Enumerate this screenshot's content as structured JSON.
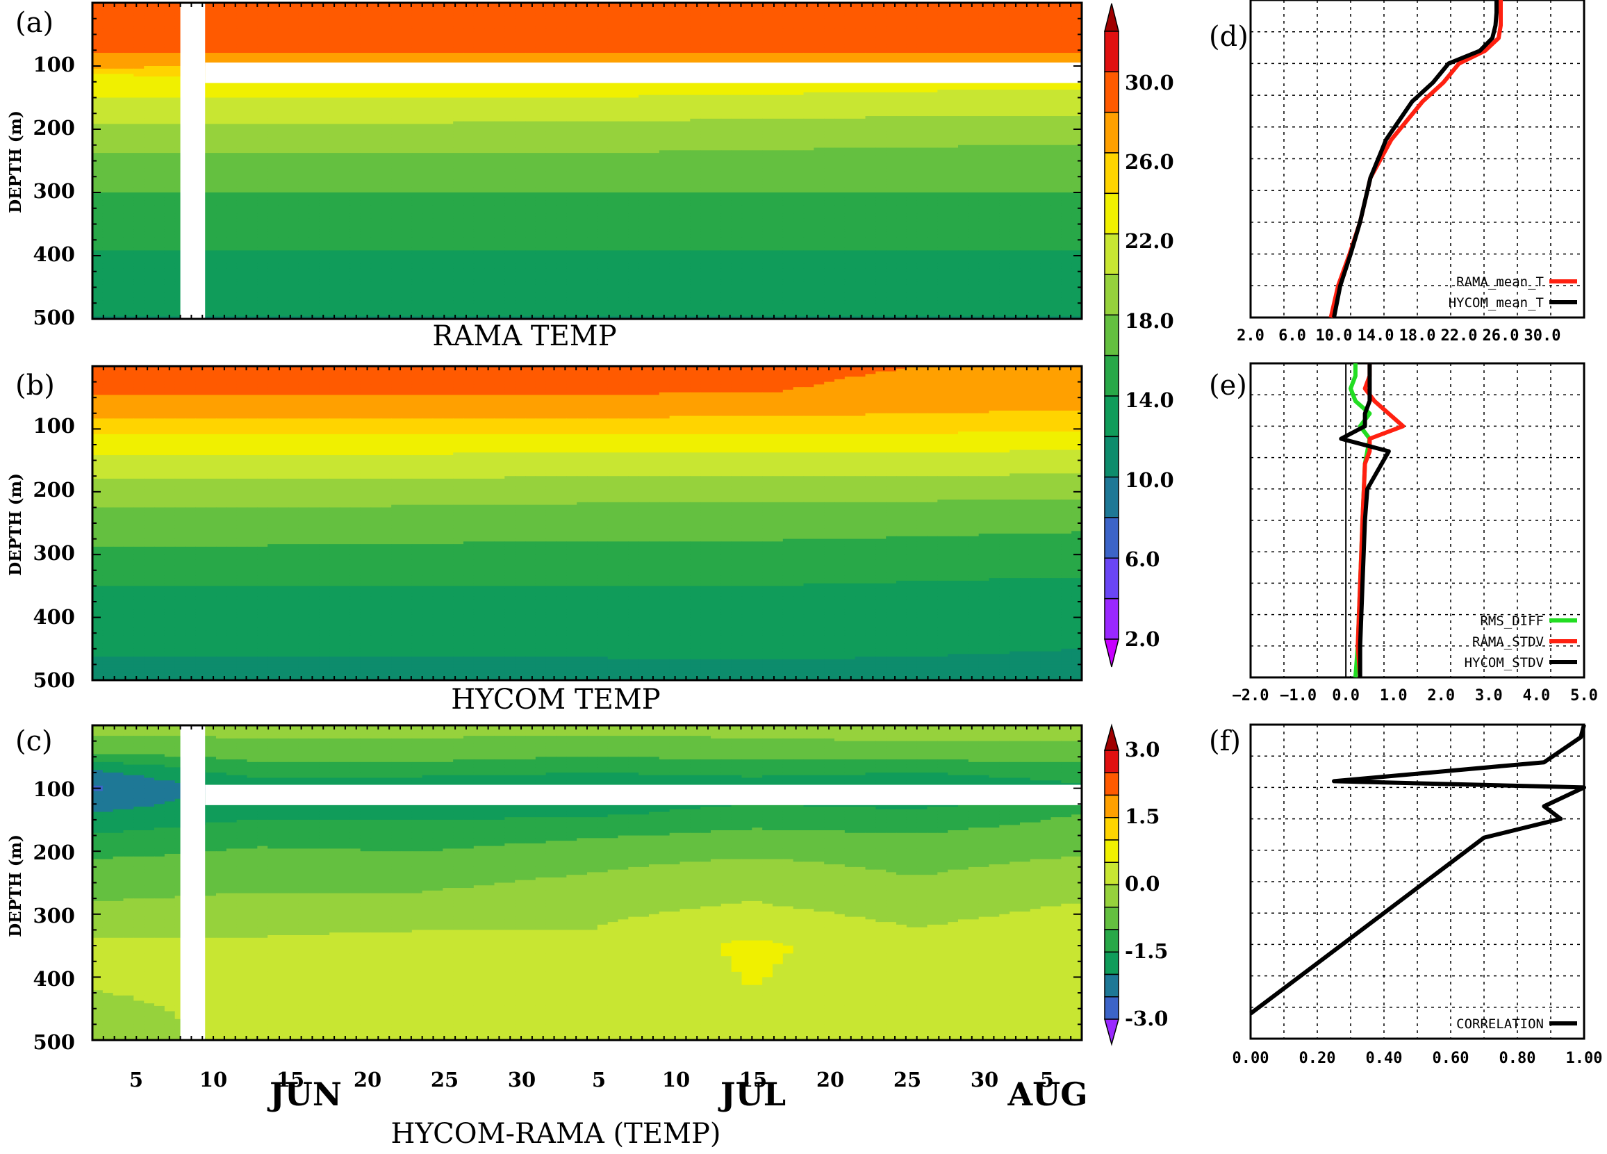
{
  "colors": {
    "levels_temp": [
      "#a00000",
      "#e01010",
      "#ff5a00",
      "#ffa000",
      "#ffd400",
      "#f0f000",
      "#c8e632",
      "#96d23c",
      "#64c040",
      "#28a848",
      "#109c5a",
      "#0d8c6c",
      "#1e7896",
      "#3c64c8",
      "#6a46f5",
      "#9a28ff",
      "#c800ff"
    ],
    "levels_diff": [
      "#a00000",
      "#e01010",
      "#ff5a00",
      "#ffa000",
      "#ffd400",
      "#f0f000",
      "#c8e632",
      "#96d23c",
      "#64c040",
      "#28a848",
      "#109c5a",
      "#1e7896",
      "#3c64c8",
      "#6a46f5",
      "#9a28ff"
    ],
    "rama_line": "#ff2010",
    "hycom_line": "#000000",
    "rms_line": "#22dd22",
    "gap": "#ffffff"
  },
  "panels": {
    "a": {
      "tag": "(a)",
      "title": "RAMA TEMP",
      "ylabel": "DEPTH (m)",
      "yticks": [
        "100",
        "200",
        "300",
        "400",
        "500"
      ]
    },
    "b": {
      "tag": "(b)",
      "title": "HYCOM TEMP",
      "ylabel": "DEPTH (m)",
      "yticks": [
        "100",
        "200",
        "300",
        "400",
        "500"
      ]
    },
    "c": {
      "tag": "(c)",
      "title": "HYCOM-RAMA (TEMP)",
      "ylabel": "DEPTH (m)",
      "yticks": [
        "100",
        "200",
        "300",
        "400",
        "500"
      ],
      "xticks": [
        "5",
        "10",
        "15",
        "20",
        "25",
        "30",
        "5",
        "10",
        "15",
        "20",
        "25",
        "30",
        "5"
      ],
      "months": [
        "JUN",
        "JUL",
        "AUG"
      ]
    },
    "d": {
      "tag": "(d)"
    },
    "e": {
      "tag": "(e)"
    },
    "f": {
      "tag": "(f)"
    }
  },
  "colorbar_temp": {
    "labels": [
      "30.0",
      "26.0",
      "22.0",
      "18.0",
      "14.0",
      "10.0",
      "6.0",
      "2.0"
    ]
  },
  "colorbar_diff": {
    "labels": [
      "3.0",
      "1.5",
      "0.0",
      "-1.5",
      "-3.0"
    ]
  },
  "chart_data": [
    {
      "type": "heatmap",
      "panel": "(a)",
      "title": "RAMA TEMP",
      "ylabel": "DEPTH (m)",
      "ylim": [
        500,
        0
      ],
      "y": [
        0,
        40,
        80,
        100,
        120,
        140,
        160,
        200,
        250,
        300,
        350,
        400,
        450,
        500
      ],
      "x_days": [
        0,
        15,
        30,
        45,
        60,
        75,
        90
      ],
      "x_start": "2 JUN",
      "values_degC": [
        [
          27.5,
          27.0,
          26.8,
          26.7,
          26.6,
          26.5,
          26.5
        ],
        [
          26.8,
          26.5,
          26.4,
          26.3,
          26.3,
          26.2,
          26.2
        ],
        [
          26.0,
          26.0,
          26.0,
          26.0,
          26.0,
          26.0,
          26.0
        ],
        [
          24.5,
          24.0,
          23.8,
          23.6,
          23.6,
          23.5,
          23.4
        ],
        [
          21.0,
          21.5,
          21.5,
          21.4,
          21.3,
          21.2,
          21.0
        ],
        [
          20.5,
          20.5,
          20.5,
          20.5,
          20.3,
          20.0,
          19.8
        ],
        [
          19.5,
          19.5,
          19.5,
          19.4,
          19.2,
          19.0,
          18.8
        ],
        [
          17.5,
          17.5,
          17.5,
          17.4,
          17.2,
          17.0,
          17.0
        ],
        [
          15.5,
          15.5,
          15.5,
          15.5,
          15.4,
          15.2,
          15.0
        ],
        [
          14.0,
          14.0,
          14.0,
          14.0,
          14.0,
          14.0,
          14.0
        ],
        [
          13.0,
          13.0,
          12.8,
          12.8,
          12.8,
          12.8,
          12.8
        ],
        [
          11.8,
          11.8,
          11.8,
          11.8,
          11.8,
          11.8,
          11.8
        ],
        [
          11.0,
          11.0,
          11.0,
          11.0,
          11.0,
          11.0,
          11.0
        ],
        [
          9.9,
          9.9,
          9.9,
          9.9,
          9.9,
          9.9,
          9.9
        ]
      ],
      "missing": {
        "x_days": [
          8,
          10
        ],
        "depth_m": [
          100,
          140
        ]
      },
      "levels": [
        2,
        4,
        6,
        8,
        10,
        12,
        14,
        16,
        18,
        20,
        22,
        24,
        26,
        28,
        30
      ]
    },
    {
      "type": "heatmap",
      "panel": "(b)",
      "title": "HYCOM TEMP",
      "ylabel": "DEPTH (m)",
      "ylim": [
        500,
        0
      ],
      "y": [
        0,
        40,
        70,
        100,
        130,
        160,
        200,
        250,
        300,
        350,
        400,
        450,
        500
      ],
      "x_days": [
        0,
        15,
        30,
        45,
        60,
        75,
        90
      ],
      "x_start": "2 JUN",
      "values_degC": [
        [
          26.5,
          26.5,
          26.5,
          26.5,
          26.4,
          26.0,
          25.6
        ],
        [
          26.2,
          26.2,
          26.2,
          26.2,
          26.1,
          25.6,
          25.2
        ],
        [
          25.0,
          25.0,
          25.0,
          25.0,
          24.8,
          24.3,
          24.0
        ],
        [
          22.5,
          22.5,
          22.5,
          22.5,
          22.5,
          22.5,
          22.2
        ],
        [
          20.5,
          20.5,
          20.5,
          20.4,
          20.4,
          20.4,
          20.2
        ],
        [
          19.0,
          19.0,
          19.0,
          18.8,
          18.8,
          18.8,
          18.6
        ],
        [
          17.0,
          17.0,
          16.9,
          16.7,
          16.7,
          16.6,
          16.5
        ],
        [
          15.0,
          15.0,
          14.9,
          14.8,
          14.8,
          14.6,
          14.4
        ],
        [
          13.6,
          13.6,
          13.5,
          13.4,
          13.4,
          13.2,
          13.0
        ],
        [
          12.0,
          12.0,
          12.0,
          12.0,
          12.0,
          11.8,
          11.6
        ],
        [
          11.0,
          11.0,
          11.0,
          11.0,
          11.0,
          10.8,
          10.6
        ],
        [
          10.2,
          10.2,
          10.2,
          10.2,
          10.2,
          10.1,
          10.0
        ],
        [
          9.5,
          9.5,
          9.5,
          9.5,
          9.6,
          9.7,
          9.7
        ]
      ],
      "levels": [
        2,
        4,
        6,
        8,
        10,
        12,
        14,
        16,
        18,
        20,
        22,
        24,
        26,
        28,
        30
      ]
    },
    {
      "type": "heatmap",
      "panel": "(c)",
      "title": "HYCOM-RAMA (TEMP)",
      "ylabel": "DEPTH (m)",
      "ylim": [
        500,
        0
      ],
      "y": [
        0,
        40,
        70,
        100,
        140,
        180,
        220,
        280,
        350,
        420,
        500
      ],
      "x_days": [
        0,
        15,
        30,
        45,
        60,
        75,
        90
      ],
      "x_start": "2 JUN",
      "values_degC": [
        [
          -0.3,
          -0.3,
          -0.3,
          -0.3,
          -0.3,
          -0.3,
          -0.3
        ],
        [
          -0.8,
          -0.7,
          -0.7,
          -0.8,
          -0.7,
          -0.6,
          -0.6
        ],
        [
          -2.0,
          -1.2,
          -1.2,
          -1.4,
          -1.3,
          -1.4,
          -1.2
        ],
        [
          -2.6,
          -1.8,
          -2.0,
          -2.0,
          -1.8,
          -2.0,
          -1.6
        ],
        [
          -2.0,
          -1.6,
          -1.6,
          -1.6,
          -1.3,
          -1.4,
          -1.0
        ],
        [
          -1.4,
          -1.1,
          -1.2,
          -1.0,
          -0.8,
          -0.9,
          -0.7
        ],
        [
          -0.9,
          -0.8,
          -0.8,
          -0.6,
          -0.4,
          -0.6,
          -0.4
        ],
        [
          -0.5,
          -0.4,
          -0.4,
          -0.2,
          0.0,
          -0.3,
          0.0
        ],
        [
          0.1,
          0.1,
          0.2,
          0.1,
          0.6,
          0.2,
          0.5
        ],
        [
          0.0,
          0.1,
          0.2,
          0.1,
          0.5,
          0.2,
          0.3
        ],
        [
          -0.2,
          0.1,
          0.1,
          0.1,
          0.2,
          0.2,
          0.2
        ]
      ],
      "missing": {
        "x_days": [
          8,
          10
        ],
        "depth_m": [
          100,
          140
        ]
      },
      "levels": [
        -3.0,
        -2.5,
        -2.0,
        -1.5,
        -1.0,
        -0.5,
        0.0,
        0.5,
        1.0,
        1.5,
        2.0,
        2.5,
        3.0
      ]
    },
    {
      "type": "line",
      "panel": "(d)",
      "xticks": [
        2.0,
        6.0,
        10.0,
        14.0,
        18.0,
        22.0,
        26.0,
        30.0
      ],
      "xlim": [
        2.0,
        34.0
      ],
      "ylim": [
        500,
        0
      ],
      "series": [
        {
          "name": "RAMA_mean_T",
          "x": [
            26.0,
            26.0,
            26.0,
            25.8,
            24.5,
            22.0,
            20.5,
            18.5,
            15.5,
            13.5,
            12.5,
            11.5,
            10.4,
            9.7
          ],
          "y": [
            0,
            20,
            40,
            60,
            80,
            100,
            130,
            160,
            220,
            280,
            350,
            400,
            450,
            500
          ]
        },
        {
          "name": "HYCOM_mean_T",
          "x": [
            25.6,
            25.6,
            25.5,
            25.2,
            24.0,
            21.0,
            19.5,
            17.5,
            15.0,
            13.5,
            12.5,
            11.6,
            10.6,
            10.0
          ],
          "y": [
            0,
            20,
            40,
            60,
            80,
            100,
            130,
            160,
            220,
            280,
            350,
            400,
            450,
            500
          ]
        }
      ]
    },
    {
      "type": "line",
      "panel": "(e)",
      "xticks": [
        -2.0,
        -1.0,
        0.0,
        1.0,
        2.0,
        3.0,
        4.0,
        5.0
      ],
      "xlim": [
        -2.0,
        5.0
      ],
      "ylim": [
        500,
        0
      ],
      "series": [
        {
          "name": "RMS_DIFF",
          "x": [
            0.2,
            0.2,
            0.1,
            0.2,
            0.5,
            0.3,
            0.5,
            0.4,
            0.35,
            0.3,
            0.25,
            0.2
          ],
          "y": [
            0,
            20,
            40,
            60,
            80,
            100,
            120,
            160,
            250,
            350,
            450,
            500
          ]
        },
        {
          "name": "RAMA_STDV",
          "x": [
            0.5,
            0.5,
            0.4,
            0.6,
            1.2,
            0.5,
            0.5,
            0.4,
            0.35,
            0.3,
            0.25,
            0.3
          ],
          "y": [
            0,
            20,
            40,
            60,
            100,
            120,
            140,
            160,
            250,
            350,
            450,
            500
          ]
        },
        {
          "name": "HYCOM_STDV",
          "x": [
            0.5,
            0.5,
            0.5,
            0.5,
            0.4,
            0.4,
            -0.1,
            0.9,
            0.6,
            0.45,
            0.4,
            0.35,
            0.3,
            0.3
          ],
          "y": [
            0,
            20,
            40,
            60,
            80,
            100,
            120,
            140,
            180,
            200,
            250,
            350,
            450,
            500
          ]
        }
      ]
    },
    {
      "type": "line",
      "panel": "(f)",
      "xticks": [
        0.0,
        0.2,
        0.4,
        0.6,
        0.8,
        1.0
      ],
      "xlim": [
        0.0,
        1.0
      ],
      "ylim": [
        500,
        0
      ],
      "series": [
        {
          "name": "CORRELATION",
          "x": [
            1.0,
            0.99,
            0.88,
            0.25,
            1.0,
            0.88,
            0.93,
            0.7,
            0.0
          ],
          "y": [
            0,
            20,
            60,
            90,
            100,
            130,
            150,
            180,
            460
          ]
        }
      ]
    }
  ]
}
